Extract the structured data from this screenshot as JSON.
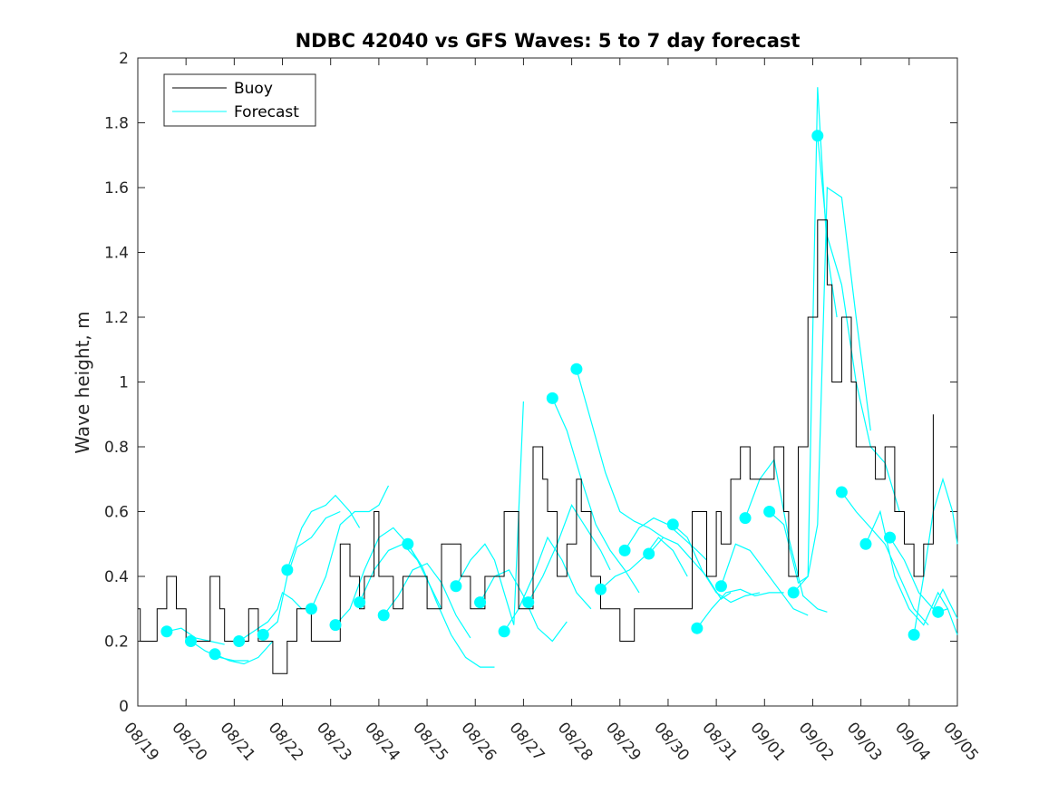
{
  "chart_data": {
    "type": "line",
    "title": "NDBC 42040 vs GFS Waves: 5 to 7 day forecast",
    "xlabel": "",
    "ylabel": "Wave height, m",
    "ylim": [
      0,
      2
    ],
    "xlim": [
      0,
      17
    ],
    "y_ticks": [
      "0",
      "0.2",
      "0.4",
      "0.6",
      "0.8",
      "1",
      "1.2",
      "1.4",
      "1.6",
      "1.8",
      "2"
    ],
    "x_ticks": [
      "08/19",
      "08/20",
      "08/21",
      "08/22",
      "08/23",
      "08/24",
      "08/25",
      "08/26",
      "08/27",
      "08/28",
      "08/29",
      "08/30",
      "08/31",
      "09/01",
      "09/02",
      "09/03",
      "09/04",
      "09/05"
    ],
    "legend": {
      "position": "top-left",
      "entries": [
        "Buoy",
        "Forecast"
      ]
    },
    "colors": {
      "buoy": "#000000",
      "forecast": "#00ffff",
      "marker": "#00ffff",
      "axes": "#262626"
    },
    "buoy": {
      "name": "Buoy",
      "x": [
        0,
        0.05,
        0.1,
        0.4,
        0.5,
        0.6,
        0.8,
        1.0,
        1.5,
        1.7,
        1.8,
        2.2,
        2.3,
        2.5,
        2.8,
        3.1,
        3.3,
        3.6,
        4.2,
        4.4,
        4.6,
        4.7,
        4.9,
        5.0,
        5.3,
        5.5,
        5.8,
        6.0,
        6.3,
        6.7,
        6.9,
        7.2,
        7.6,
        7.9,
        8.2,
        8.4,
        8.5,
        8.7,
        8.9,
        9.1,
        9.2,
        9.4,
        9.6,
        9.7,
        10.0,
        10.3,
        10.6,
        11.0,
        11.5,
        11.8,
        12.0,
        12.1,
        12.3,
        12.5,
        12.7,
        13.0,
        13.2,
        13.4,
        13.5,
        13.7,
        13.9,
        14.1,
        14.3,
        14.4,
        14.6,
        14.8,
        14.9,
        15.1,
        15.3,
        15.5,
        15.7,
        15.9,
        16.1,
        16.3,
        16.5
      ],
      "y": [
        0.3,
        0.2,
        0.2,
        0.3,
        0.3,
        0.4,
        0.3,
        0.2,
        0.4,
        0.3,
        0.2,
        0.2,
        0.3,
        0.2,
        0.1,
        0.2,
        0.3,
        0.2,
        0.5,
        0.4,
        0.3,
        0.4,
        0.6,
        0.4,
        0.3,
        0.4,
        0.4,
        0.3,
        0.5,
        0.4,
        0.3,
        0.4,
        0.6,
        0.3,
        0.8,
        0.7,
        0.6,
        0.4,
        0.5,
        0.7,
        0.6,
        0.4,
        0.3,
        0.3,
        0.2,
        0.3,
        0.3,
        0.3,
        0.6,
        0.4,
        0.6,
        0.5,
        0.7,
        0.8,
        0.7,
        0.7,
        0.8,
        0.6,
        0.4,
        0.8,
        1.2,
        1.5,
        1.3,
        1.0,
        1.2,
        1.0,
        0.8,
        0.8,
        0.7,
        0.8,
        0.6,
        0.5,
        0.4,
        0.5,
        0.9
      ]
    },
    "forecast_runs": [
      {
        "name": "Forecast",
        "start": [
          0.6,
          0.23
        ],
        "x": [
          0.6,
          0.9,
          1.2,
          1.5,
          1.8
        ],
        "y": [
          0.23,
          0.24,
          0.21,
          0.2,
          0.19
        ]
      },
      {
        "name": "Forecast",
        "start": [
          1.1,
          0.2
        ],
        "x": [
          1.1,
          1.4,
          1.7,
          2.0,
          2.3
        ],
        "y": [
          0.2,
          0.17,
          0.15,
          0.14,
          0.14
        ]
      },
      {
        "name": "Forecast",
        "start": [
          1.6,
          0.16
        ],
        "x": [
          1.6,
          1.9,
          2.2,
          2.5,
          2.8
        ],
        "y": [
          0.16,
          0.14,
          0.13,
          0.15,
          0.2
        ]
      },
      {
        "name": "Forecast",
        "start": [
          2.1,
          0.2
        ],
        "x": [
          2.1,
          2.4,
          2.7,
          2.9,
          3.0,
          3.2,
          3.4
        ],
        "y": [
          0.2,
          0.23,
          0.26,
          0.3,
          0.35,
          0.33,
          0.3
        ]
      },
      {
        "name": "Forecast",
        "start": [
          2.6,
          0.22
        ],
        "x": [
          2.6,
          2.9,
          3.1,
          3.3,
          3.6,
          3.9,
          4.2
        ],
        "y": [
          0.22,
          0.26,
          0.4,
          0.49,
          0.52,
          0.58,
          0.6
        ]
      },
      {
        "name": "Forecast",
        "start": [
          3.1,
          0.42
        ],
        "x": [
          3.1,
          3.4,
          3.6,
          3.9,
          4.1,
          4.4,
          4.6
        ],
        "y": [
          0.42,
          0.55,
          0.6,
          0.62,
          0.65,
          0.6,
          0.55
        ]
      },
      {
        "name": "Forecast",
        "start": [
          3.6,
          0.3
        ],
        "x": [
          3.6,
          3.9,
          4.2,
          4.5,
          4.8,
          5.0,
          5.2
        ],
        "y": [
          0.3,
          0.4,
          0.56,
          0.6,
          0.6,
          0.62,
          0.68
        ]
      },
      {
        "name": "Forecast",
        "start": [
          4.1,
          0.25
        ],
        "x": [
          4.1,
          4.4,
          4.7,
          5.0,
          5.3,
          5.6,
          5.8
        ],
        "y": [
          0.25,
          0.3,
          0.42,
          0.52,
          0.55,
          0.5,
          0.45
        ]
      },
      {
        "name": "Forecast",
        "start": [
          4.6,
          0.32
        ],
        "x": [
          4.6,
          4.9,
          5.2,
          5.5,
          5.8,
          6.1,
          6.3
        ],
        "y": [
          0.32,
          0.42,
          0.48,
          0.5,
          0.45,
          0.36,
          0.3
        ]
      },
      {
        "name": "Forecast",
        "start": [
          5.1,
          0.28
        ],
        "x": [
          5.1,
          5.4,
          5.7,
          6.0,
          6.3,
          6.6,
          6.9
        ],
        "y": [
          0.28,
          0.34,
          0.42,
          0.44,
          0.38,
          0.28,
          0.21
        ]
      },
      {
        "name": "Forecast",
        "start": [
          5.6,
          0.5
        ],
        "x": [
          5.6,
          5.9,
          6.2,
          6.5,
          6.8,
          7.1,
          7.4
        ],
        "y": [
          0.5,
          0.43,
          0.32,
          0.22,
          0.15,
          0.12,
          0.12
        ]
      },
      {
        "name": "Forecast",
        "start": [
          6.6,
          0.37
        ],
        "x": [
          6.6,
          6.9,
          7.2,
          7.4,
          7.6,
          7.8,
          8.0
        ],
        "y": [
          0.37,
          0.45,
          0.5,
          0.45,
          0.35,
          0.25,
          0.94
        ]
      },
      {
        "name": "Forecast",
        "start": [
          7.1,
          0.32
        ],
        "x": [
          7.1,
          7.4,
          7.7,
          8.0,
          8.3,
          8.6,
          8.9
        ],
        "y": [
          0.32,
          0.4,
          0.42,
          0.34,
          0.24,
          0.2,
          0.26
        ]
      },
      {
        "name": "Forecast",
        "start": [
          7.6,
          0.23
        ],
        "x": [
          7.6,
          7.9,
          8.2,
          8.5,
          8.8,
          9.1,
          9.4
        ],
        "y": [
          0.23,
          0.3,
          0.4,
          0.52,
          0.45,
          0.35,
          0.3
        ]
      },
      {
        "name": "Forecast",
        "start": [
          8.1,
          0.32
        ],
        "x": [
          8.1,
          8.4,
          8.7,
          9.0,
          9.3,
          9.6,
          9.8
        ],
        "y": [
          0.32,
          0.4,
          0.5,
          0.62,
          0.55,
          0.48,
          0.42
        ]
      },
      {
        "name": "Forecast",
        "start": [
          8.6,
          0.95
        ],
        "x": [
          8.6,
          8.9,
          9.2,
          9.5,
          9.8,
          10.1,
          10.4
        ],
        "y": [
          0.95,
          0.85,
          0.7,
          0.56,
          0.48,
          0.42,
          0.35
        ]
      },
      {
        "name": "Forecast",
        "start": [
          9.1,
          1.04
        ],
        "x": [
          9.1,
          9.4,
          9.7,
          10.0,
          10.3,
          10.6,
          10.9
        ],
        "y": [
          1.04,
          0.88,
          0.72,
          0.6,
          0.57,
          0.55,
          0.52
        ]
      },
      {
        "name": "Forecast",
        "start": [
          9.6,
          0.36
        ],
        "x": [
          9.6,
          9.9,
          10.2,
          10.5,
          10.8,
          11.1,
          11.4
        ],
        "y": [
          0.36,
          0.4,
          0.42,
          0.46,
          0.52,
          0.48,
          0.4
        ]
      },
      {
        "name": "Forecast",
        "start": [
          10.1,
          0.48
        ],
        "x": [
          10.1,
          10.4,
          10.7,
          11.0,
          11.3,
          11.6,
          11.8
        ],
        "y": [
          0.48,
          0.55,
          0.58,
          0.56,
          0.52,
          0.48,
          0.45
        ]
      },
      {
        "name": "Forecast",
        "start": [
          10.6,
          0.47
        ],
        "x": [
          10.6,
          10.9,
          11.2,
          11.5,
          11.8,
          12.1,
          12.3
        ],
        "y": [
          0.47,
          0.52,
          0.5,
          0.45,
          0.4,
          0.33,
          0.35
        ]
      },
      {
        "name": "Forecast",
        "start": [
          11.1,
          0.56
        ],
        "x": [
          11.1,
          11.4,
          11.7,
          12.0,
          12.3,
          12.6,
          12.9
        ],
        "y": [
          0.56,
          0.52,
          0.42,
          0.35,
          0.32,
          0.34,
          0.35
        ]
      },
      {
        "name": "Forecast",
        "start": [
          11.6,
          0.24
        ],
        "x": [
          11.6,
          11.9,
          12.2,
          12.5,
          12.8,
          13.1,
          13.4
        ],
        "y": [
          0.24,
          0.3,
          0.35,
          0.36,
          0.34,
          0.35,
          0.35
        ]
      },
      {
        "name": "Forecast",
        "start": [
          12.1,
          0.37
        ],
        "x": [
          12.1,
          12.4,
          12.7,
          13.0,
          13.3,
          13.6,
          13.9
        ],
        "y": [
          0.37,
          0.5,
          0.48,
          0.42,
          0.36,
          0.3,
          0.28
        ]
      },
      {
        "name": "Forecast",
        "start": [
          12.6,
          0.58
        ],
        "x": [
          12.6,
          12.9,
          13.2,
          13.5,
          13.8,
          14.1,
          14.3
        ],
        "y": [
          0.58,
          0.7,
          0.76,
          0.52,
          0.34,
          0.3,
          0.29
        ]
      },
      {
        "name": "Forecast",
        "start": [
          13.1,
          0.6
        ],
        "x": [
          13.1,
          13.4,
          13.7,
          13.9,
          14.1,
          14.3,
          14.5
        ],
        "y": [
          0.6,
          0.56,
          0.38,
          0.4,
          1.91,
          1.4,
          1.2
        ]
      },
      {
        "name": "Forecast",
        "start": [
          13.6,
          0.35
        ],
        "x": [
          13.6,
          13.9,
          14.1,
          14.3,
          14.6,
          14.9,
          15.2
        ],
        "y": [
          0.35,
          0.4,
          0.56,
          1.6,
          1.57,
          1.2,
          0.85
        ]
      },
      {
        "name": "Forecast",
        "start": [
          14.1,
          1.76
        ],
        "x": [
          14.1,
          14.3,
          14.6,
          14.9,
          15.2,
          15.5,
          15.8
        ],
        "y": [
          1.76,
          1.45,
          1.3,
          1.0,
          0.8,
          0.75,
          0.6
        ]
      },
      {
        "name": "Forecast",
        "start": [
          14.6,
          0.66
        ],
        "x": [
          14.6,
          14.9,
          15.2,
          15.5,
          15.8,
          16.1,
          16.4
        ],
        "y": [
          0.66,
          0.6,
          0.55,
          0.5,
          0.4,
          0.3,
          0.25
        ]
      },
      {
        "name": "Forecast",
        "start": [
          15.1,
          0.5
        ],
        "x": [
          15.1,
          15.4,
          15.7,
          16.0,
          16.3,
          16.6,
          16.8
        ],
        "y": [
          0.5,
          0.6,
          0.4,
          0.3,
          0.25,
          0.35,
          0.3
        ]
      },
      {
        "name": "Forecast",
        "start": [
          15.6,
          0.52
        ],
        "x": [
          15.6,
          15.9,
          16.2,
          16.5,
          16.7,
          16.9,
          17.0
        ],
        "y": [
          0.52,
          0.45,
          0.35,
          0.3,
          0.36,
          0.3,
          0.27
        ]
      },
      {
        "name": "Forecast",
        "start": [
          16.1,
          0.22
        ],
        "x": [
          16.1,
          16.3,
          16.5,
          16.7,
          16.9,
          17.0
        ],
        "y": [
          0.22,
          0.4,
          0.6,
          0.7,
          0.6,
          0.5
        ]
      },
      {
        "name": "Forecast",
        "start": [
          16.6,
          0.29
        ],
        "x": [
          16.6,
          16.8,
          17.0
        ],
        "y": [
          0.29,
          0.3,
          0.22
        ]
      }
    ]
  }
}
